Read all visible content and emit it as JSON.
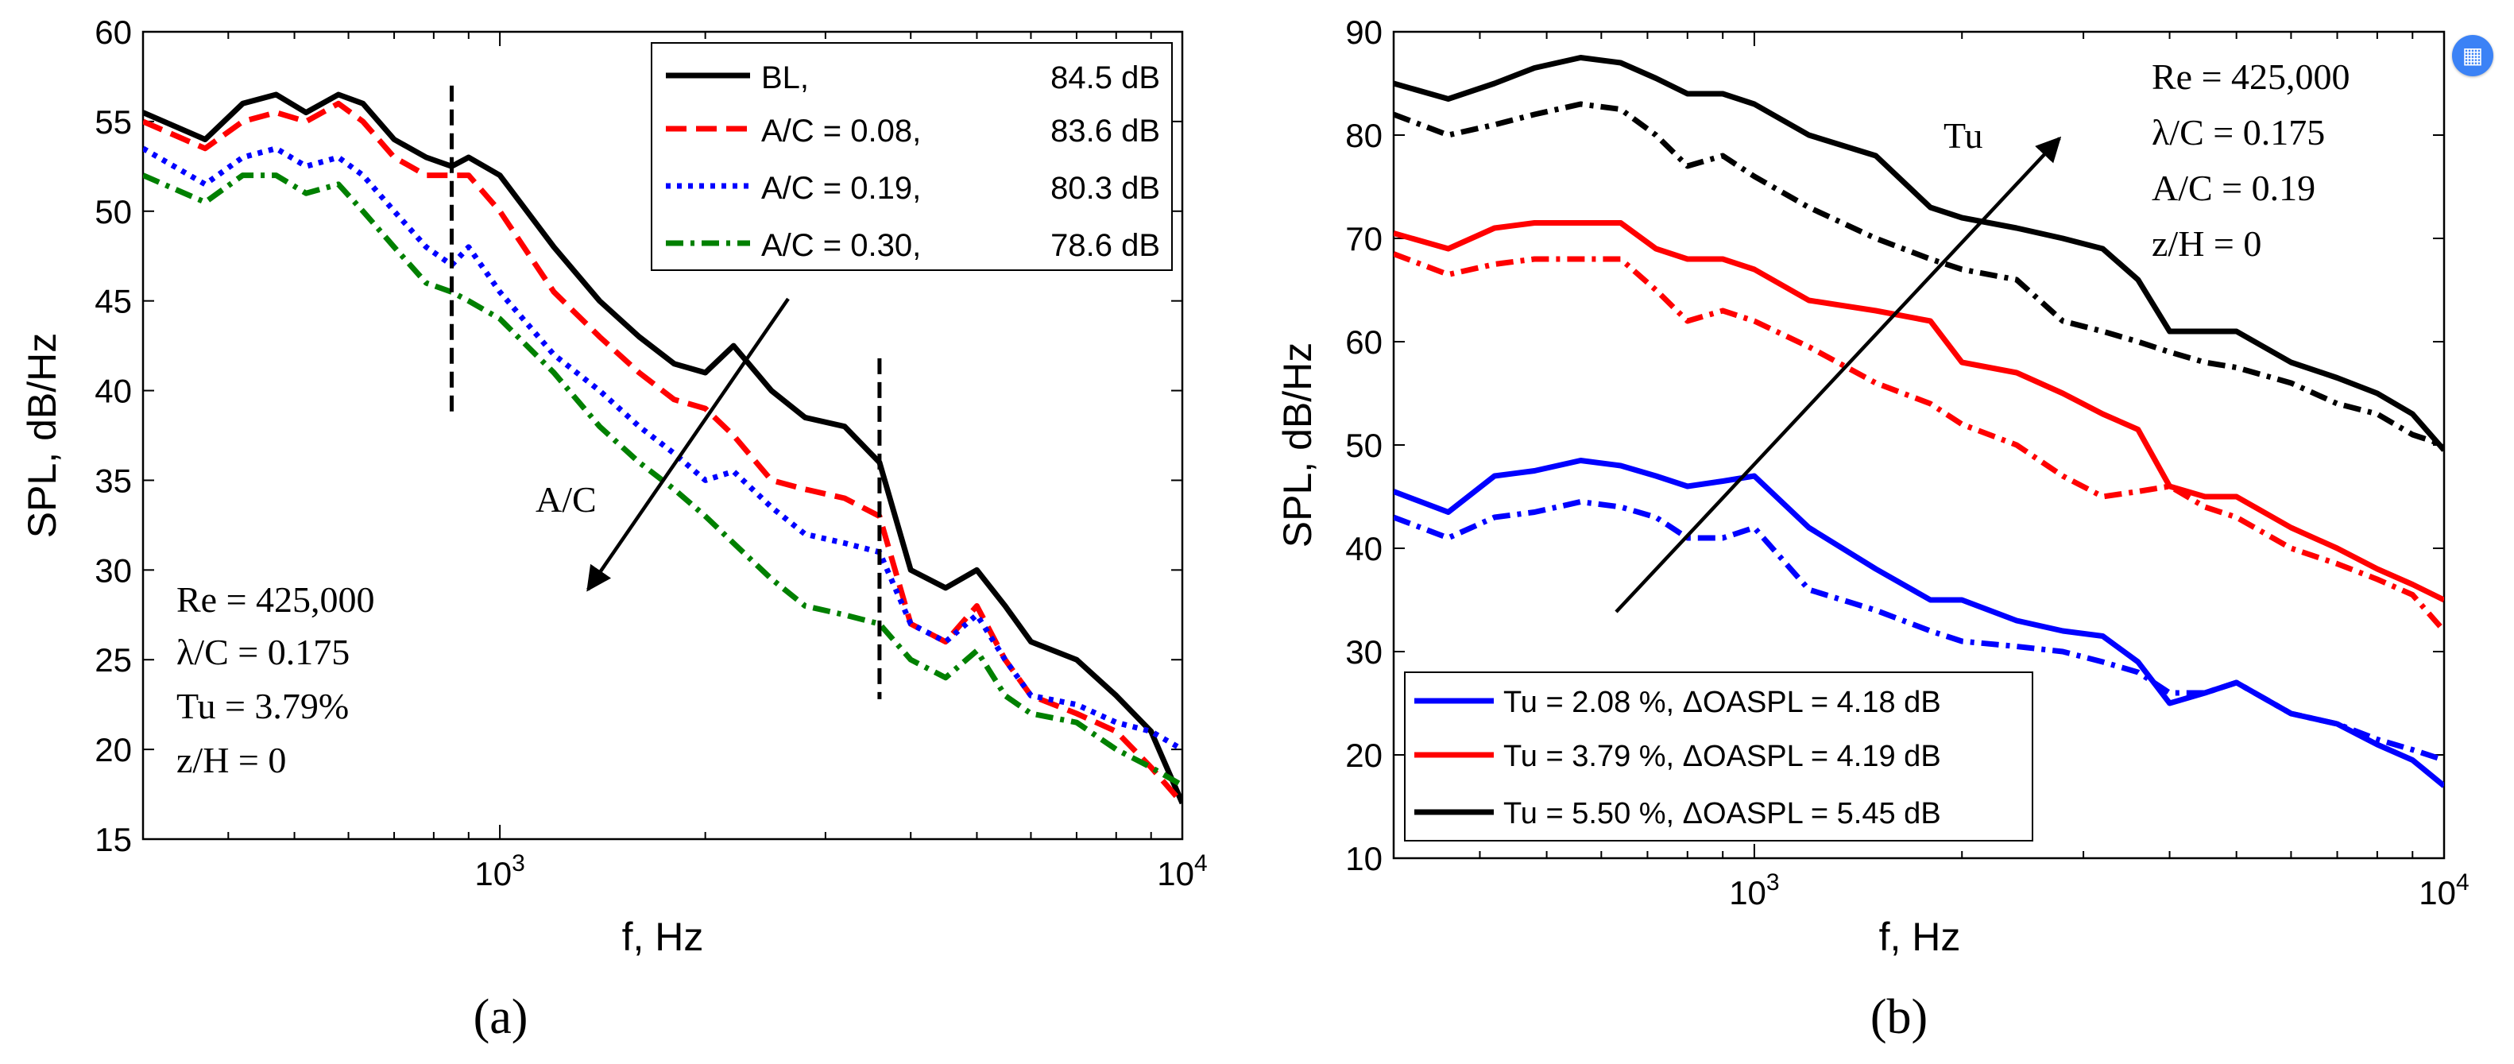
{
  "badge": {
    "icon": "calendar-share-icon",
    "glyph": "▦",
    "color": "#3b82f6"
  },
  "colors": {
    "black": "#000000",
    "red": "#ff0000",
    "blue": "#0000ff",
    "green": "#008000"
  },
  "chart_data": [
    {
      "panel_id": "a",
      "type": "line",
      "caption": "(a)",
      "xlabel": "f, Hz",
      "ylabel": "SPL, dB/Hz",
      "x_scale": "log",
      "xlim": [
        300,
        10000
      ],
      "ylim": [
        15,
        60
      ],
      "yticks": [
        15,
        20,
        25,
        30,
        35,
        40,
        45,
        50,
        55,
        60
      ],
      "xticks": [
        {
          "value": 1000,
          "base": "10",
          "exp": "3"
        },
        {
          "value": 10000,
          "base": "10",
          "exp": "4"
        }
      ],
      "legend_position": "top-right",
      "legend": [
        {
          "name": "BL,",
          "value": "84.5 dB",
          "color": "#000000",
          "style": "solid"
        },
        {
          "name": "A/C = 0.08,",
          "value": "83.6 dB",
          "color": "#ff0000",
          "style": "dash"
        },
        {
          "name": "A/C = 0.19,",
          "value": "80.3 dB",
          "color": "#0000ff",
          "style": "dot"
        },
        {
          "name": "A/C = 0.30,",
          "value": "78.6 dB",
          "color": "#008000",
          "style": "dashdot"
        }
      ],
      "series": [
        {
          "name": "BL",
          "color": "#000000",
          "style": "solid",
          "x": [
            300,
            370,
            420,
            470,
            520,
            580,
            630,
            700,
            780,
            850,
            900,
            1000,
            1200,
            1400,
            1600,
            1800,
            2000,
            2200,
            2500,
            2800,
            3200,
            3600,
            4000,
            4500,
            5000,
            5500,
            6000,
            7000,
            8000,
            9000,
            10000
          ],
          "y": [
            55.5,
            54,
            56,
            56.5,
            55.5,
            56.5,
            56,
            54,
            53,
            52.5,
            53,
            52,
            48,
            45,
            43,
            41.5,
            41,
            42.5,
            40,
            38.5,
            38,
            36,
            30,
            29,
            30,
            28,
            26,
            25,
            23,
            21,
            17
          ]
        },
        {
          "name": "A/C = 0.08",
          "color": "#ff0000",
          "style": "dash",
          "x": [
            300,
            370,
            420,
            470,
            520,
            580,
            630,
            700,
            780,
            850,
            900,
            1000,
            1200,
            1400,
            1600,
            1800,
            2000,
            2200,
            2500,
            2800,
            3200,
            3600,
            4000,
            4500,
            5000,
            5500,
            6000,
            7000,
            8000,
            9000,
            10000
          ],
          "y": [
            55,
            53.5,
            55,
            55.5,
            55,
            56,
            55,
            53,
            52,
            52,
            52,
            50,
            45.5,
            43,
            41,
            39.5,
            39,
            37.5,
            35,
            34.5,
            34,
            33,
            27,
            26,
            28,
            25,
            23,
            22,
            21,
            19,
            17
          ]
        },
        {
          "name": "A/C = 0.19",
          "color": "#0000ff",
          "style": "dot",
          "x": [
            300,
            370,
            420,
            470,
            520,
            580,
            630,
            700,
            780,
            850,
            900,
            1000,
            1200,
            1400,
            1600,
            1800,
            2000,
            2200,
            2500,
            2800,
            3200,
            3600,
            4000,
            4500,
            5000,
            5500,
            6000,
            7000,
            8000,
            9000,
            10000
          ],
          "y": [
            53.5,
            51.5,
            53,
            53.5,
            52.5,
            53,
            52,
            50,
            48,
            47,
            48,
            45.5,
            42,
            40,
            38,
            36.5,
            35,
            35.5,
            33.5,
            32,
            31.5,
            31,
            27,
            26,
            27.5,
            25,
            23,
            22.5,
            21.5,
            21,
            20
          ]
        },
        {
          "name": "A/C = 0.30",
          "color": "#008000",
          "style": "dashdot",
          "x": [
            300,
            370,
            420,
            470,
            520,
            580,
            630,
            700,
            780,
            850,
            900,
            1000,
            1200,
            1400,
            1600,
            1800,
            2000,
            2200,
            2500,
            2800,
            3200,
            3600,
            4000,
            4500,
            5000,
            5500,
            6000,
            7000,
            8000,
            9000,
            10000
          ],
          "y": [
            52,
            50.5,
            52,
            52,
            51,
            51.5,
            50,
            48,
            46,
            45.5,
            45,
            44,
            41,
            38,
            36,
            34.5,
            33,
            31.5,
            29.5,
            28,
            27.5,
            27,
            25,
            24,
            25.5,
            23,
            22,
            21.5,
            20,
            19,
            18
          ]
        }
      ],
      "annotations": {
        "params": [
          "Re = 425,000",
          "λ/C = 0.175",
          "Tu = 3.79%",
          "z/H = 0"
        ],
        "arrow_label": "A/C",
        "dashed_markers_hz": [
          850,
          3600
        ]
      }
    },
    {
      "panel_id": "b",
      "type": "line",
      "caption": "(b)",
      "xlabel": "f, Hz",
      "ylabel": "SPL, dB/Hz",
      "x_scale": "log",
      "xlim": [
        300,
        10000
      ],
      "ylim": [
        10,
        90
      ],
      "yticks": [
        10,
        20,
        30,
        40,
        50,
        60,
        70,
        80,
        90
      ],
      "xticks": [
        {
          "value": 1000,
          "base": "10",
          "exp": "3"
        },
        {
          "value": 10000,
          "base": "10",
          "exp": "4"
        }
      ],
      "legend_position": "bottom-left",
      "legend": [
        {
          "name": "Tu = 2.08 %, ΔOASPL = 4.18 dB",
          "color": "#0000ff",
          "style": "solid"
        },
        {
          "name": "Tu = 3.79 %, ΔOASPL = 4.19 dB",
          "color": "#ff0000",
          "style": "solid"
        },
        {
          "name": "Tu = 5.50 %, ΔOASPL = 5.45 dB",
          "color": "#000000",
          "style": "solid"
        }
      ],
      "series": [
        {
          "name": "Tu = 5.50 % solid",
          "color": "#000000",
          "style": "solid",
          "x": [
            300,
            360,
            420,
            480,
            560,
            640,
            720,
            800,
            900,
            1000,
            1200,
            1500,
            1800,
            2000,
            2400,
            2800,
            3200,
            3600,
            4000,
            4500,
            5000,
            6000,
            7000,
            8000,
            9000,
            10000
          ],
          "y": [
            85,
            83.5,
            85,
            86.5,
            87.5,
            87,
            85.5,
            84,
            84,
            83,
            80,
            78,
            73,
            72,
            71,
            70,
            69,
            66,
            61,
            61,
            61,
            58,
            56.5,
            55,
            53,
            49.5
          ]
        },
        {
          "name": "Tu = 5.50 % dash-dot",
          "color": "#000000",
          "style": "dashdot",
          "x": [
            300,
            360,
            420,
            480,
            560,
            640,
            720,
            800,
            900,
            1000,
            1200,
            1500,
            1800,
            2000,
            2400,
            2800,
            3200,
            3600,
            4000,
            4500,
            5000,
            6000,
            7000,
            8000,
            9000,
            10000
          ],
          "y": [
            82,
            80,
            81,
            82,
            83,
            82.5,
            80,
            77,
            78,
            76,
            73,
            70,
            68,
            67,
            66,
            62,
            61,
            60,
            59,
            58,
            57.5,
            56,
            54,
            53,
            51,
            50
          ]
        },
        {
          "name": "Tu = 3.79 % solid",
          "color": "#ff0000",
          "style": "solid",
          "x": [
            300,
            360,
            420,
            480,
            560,
            640,
            720,
            800,
            900,
            1000,
            1200,
            1500,
            1800,
            2000,
            2400,
            2800,
            3200,
            3600,
            4000,
            4500,
            5000,
            6000,
            7000,
            8000,
            9000,
            10000
          ],
          "y": [
            70.5,
            69,
            71,
            71.5,
            71.5,
            71.5,
            69,
            68,
            68,
            67,
            64,
            63,
            62,
            58,
            57,
            55,
            53,
            51.5,
            46,
            45,
            45,
            42,
            40,
            38,
            36.5,
            35
          ]
        },
        {
          "name": "Tu = 3.79 % dash-dot",
          "color": "#ff0000",
          "style": "dashdot",
          "x": [
            300,
            360,
            420,
            480,
            560,
            640,
            720,
            800,
            900,
            1000,
            1200,
            1500,
            1800,
            2000,
            2400,
            2800,
            3200,
            3600,
            4000,
            4500,
            5000,
            6000,
            7000,
            8000,
            9000,
            10000
          ],
          "y": [
            68.5,
            66.5,
            67.5,
            68,
            68,
            68,
            65,
            62,
            63,
            62,
            59.5,
            56,
            54,
            52,
            50,
            47,
            45,
            45.5,
            46,
            44,
            43,
            40,
            38.5,
            37,
            35.5,
            32
          ]
        },
        {
          "name": "Tu = 2.08 % solid",
          "color": "#0000ff",
          "style": "solid",
          "x": [
            300,
            360,
            420,
            480,
            560,
            640,
            720,
            800,
            900,
            1000,
            1200,
            1500,
            1800,
            2000,
            2400,
            2800,
            3200,
            3600,
            4000,
            4500,
            5000,
            6000,
            7000,
            8000,
            9000,
            10000
          ],
          "y": [
            45.5,
            43.5,
            47,
            47.5,
            48.5,
            48,
            47,
            46,
            46.5,
            47,
            42,
            38,
            35,
            35,
            33,
            32,
            31.5,
            29,
            25,
            26,
            27,
            24,
            23,
            21,
            19.5,
            17
          ]
        },
        {
          "name": "Tu = 2.08 % dash-dot",
          "color": "#0000ff",
          "style": "dashdot",
          "x": [
            300,
            360,
            420,
            480,
            560,
            640,
            720,
            800,
            900,
            1000,
            1200,
            1500,
            1800,
            2000,
            2400,
            2800,
            3200,
            3600,
            4000,
            4500,
            5000,
            6000,
            7000,
            8000,
            9000,
            10000
          ],
          "y": [
            43,
            41,
            43,
            43.5,
            44.5,
            44,
            43,
            41,
            41,
            42,
            36,
            34,
            32,
            31,
            30.5,
            30,
            29,
            28,
            26,
            26,
            27,
            24,
            23,
            21.5,
            20.5,
            19.5
          ]
        }
      ],
      "annotations": {
        "params": [
          "Re = 425,000",
          "λ/C = 0.175",
          "A/C = 0.19",
          "z/H = 0"
        ],
        "arrow_label": "Tu"
      }
    }
  ]
}
